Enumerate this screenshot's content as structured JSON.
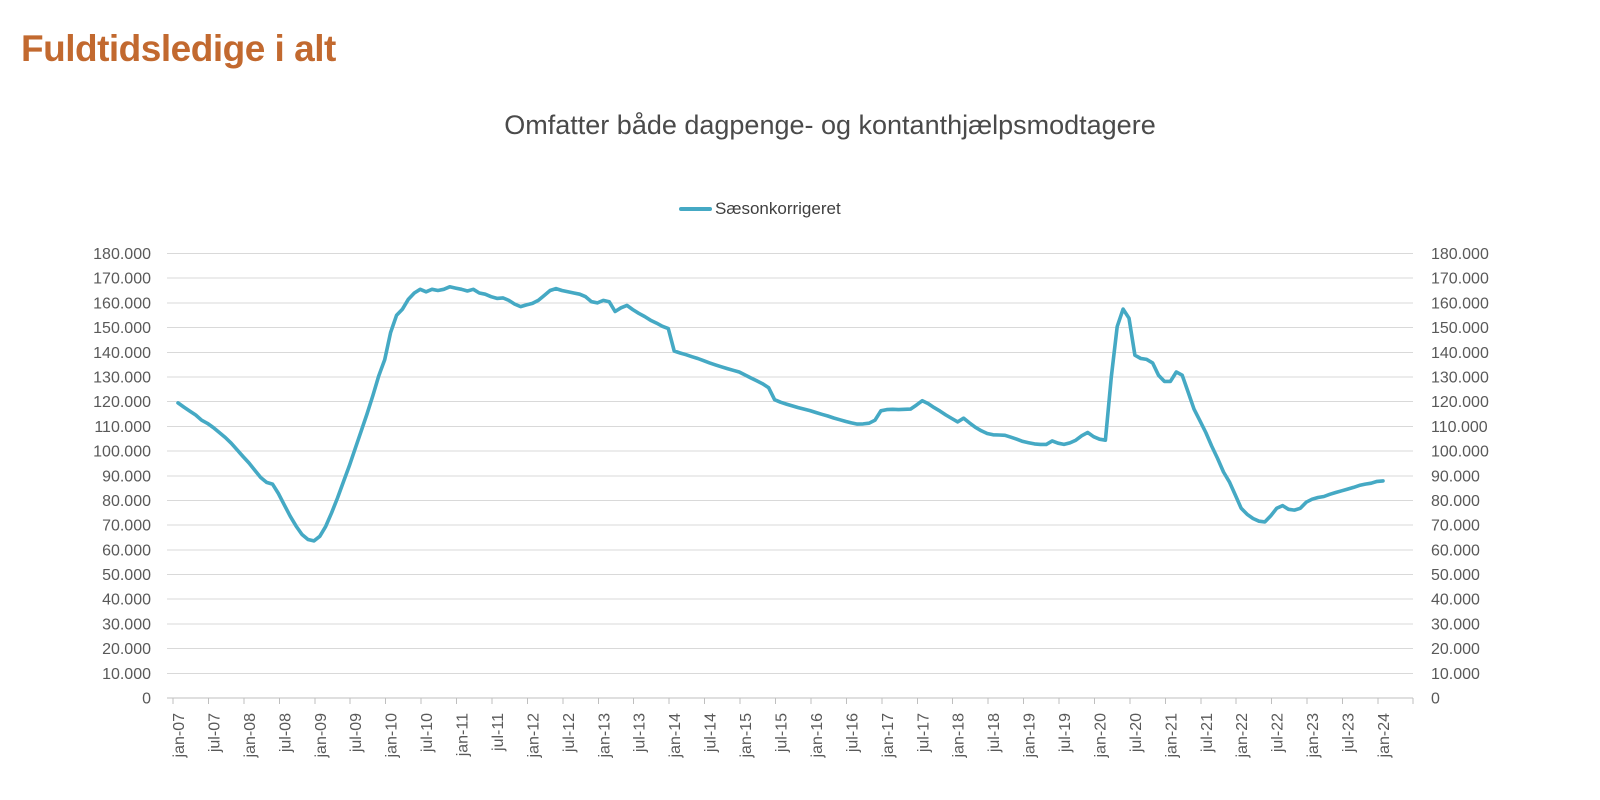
{
  "chart_data": {
    "type": "line",
    "title": "Fuldtidsledige i alt",
    "subtitle": "Omfatter både dagpenge- og kontanthjælpsmodtagere",
    "legend_position": "top-center",
    "grid": "horizontal",
    "ylim": [
      0,
      180000
    ],
    "y_tick_step": 10000,
    "y_axis_sides": "both",
    "y_tick_labels": [
      "0",
      "10.000",
      "20.000",
      "30.000",
      "40.000",
      "50.000",
      "60.000",
      "70.000",
      "80.000",
      "90.000",
      "100.000",
      "110.000",
      "120.000",
      "130.000",
      "140.000",
      "150.000",
      "160.000",
      "170.000",
      "180.000"
    ],
    "x_tick_labels": [
      "jan-07",
      "jul-07",
      "jan-08",
      "jul-08",
      "jan-09",
      "jul-09",
      "jan-10",
      "jul-10",
      "jan-11",
      "jul-11",
      "jan-12",
      "jul-12",
      "jan-13",
      "jul-13",
      "jan-14",
      "jul-14",
      "jan-15",
      "jul-15",
      "jan-16",
      "jul-16",
      "jan-17",
      "jul-17",
      "jan-18",
      "jul-18",
      "jan-19",
      "jul-19",
      "jan-20",
      "jul-20",
      "jan-21",
      "jul-21",
      "jan-22",
      "jul-22",
      "jan-23",
      "jul-23",
      "jan-24"
    ],
    "x_label_rotation_deg": -90,
    "colors": {
      "line": "#45a9c4",
      "gridline": "#d9d9d9",
      "axis": "#bfbfbf",
      "axis_text": "#595959",
      "title": "#c2692f",
      "subtitle_text": "#4a4a4a",
      "legend_text": "#3f3f3f"
    },
    "series": [
      {
        "name": "Sæsonkorrigeret",
        "frequency": "monthly",
        "start": "jan-07",
        "end": "jan-24",
        "unit": "persons (full-time unemployed)",
        "values_thousands": [
          119.5,
          117.8,
          116.2,
          114.6,
          112.5,
          111.2,
          109.5,
          107.5,
          105.5,
          103.2,
          100.5,
          97.8,
          95.2,
          92.2,
          89.3,
          87.3,
          86.6,
          82.8,
          78.2,
          73.6,
          69.6,
          66.2,
          64.2,
          63.6,
          65.5,
          69.5,
          75.0,
          81.0,
          87.5,
          94.0,
          101.0,
          108.0,
          115.0,
          122.5,
          130.5,
          137.0,
          148.0,
          155.0,
          157.5,
          161.5,
          164.0,
          165.5,
          164.5,
          165.5,
          165.0,
          165.5,
          166.5,
          166.0,
          165.5,
          164.8,
          165.5,
          164.0,
          163.5,
          162.5,
          161.8,
          162.0,
          161.0,
          159.5,
          158.5,
          159.2,
          159.8,
          161.0,
          163.0,
          165.0,
          165.8,
          165.0,
          164.5,
          164.0,
          163.5,
          162.5,
          160.5,
          160.0,
          161.0,
          160.5,
          156.5,
          158.0,
          159.0,
          157.3,
          155.8,
          154.5,
          153.0,
          151.8,
          150.5,
          149.6,
          140.5,
          139.7,
          139.0,
          138.2,
          137.5,
          136.6,
          135.7,
          134.9,
          134.1,
          133.4,
          132.7,
          132.0,
          130.8,
          129.6,
          128.4,
          127.2,
          125.6,
          120.8,
          119.8,
          119.0,
          118.3,
          117.6,
          117.0,
          116.4,
          115.6,
          114.9,
          114.2,
          113.4,
          112.7,
          112.0,
          111.4,
          110.9,
          111.0,
          111.3,
          112.5,
          116.3,
          116.8,
          116.9,
          116.8,
          116.9,
          117.0,
          118.6,
          120.4,
          119.2,
          117.6,
          116.2,
          114.6,
          113.2,
          111.8,
          113.3,
          111.4,
          109.6,
          108.2,
          107.1,
          106.6,
          106.5,
          106.4,
          105.6,
          104.8,
          103.9,
          103.4,
          102.9,
          102.7,
          102.7,
          104.1,
          103.2,
          102.7,
          103.3,
          104.4,
          106.2,
          107.5,
          105.8,
          104.8,
          104.4,
          130.0,
          150.4,
          157.5,
          153.8,
          138.8,
          137.5,
          137.1,
          135.7,
          130.7,
          128.2,
          128.2,
          132.0,
          130.7,
          123.9,
          117.0,
          112.3,
          107.5,
          102.0,
          97.0,
          91.5,
          87.5,
          82.2,
          76.8,
          74.4,
          72.7,
          71.6,
          71.3,
          73.8,
          76.8,
          77.9,
          76.4,
          76.1,
          76.8,
          79.3,
          80.5,
          81.2,
          81.6,
          82.5,
          83.2,
          83.9,
          84.6,
          85.3,
          86.1,
          86.6,
          87.0,
          87.7,
          87.9
        ]
      }
    ]
  }
}
